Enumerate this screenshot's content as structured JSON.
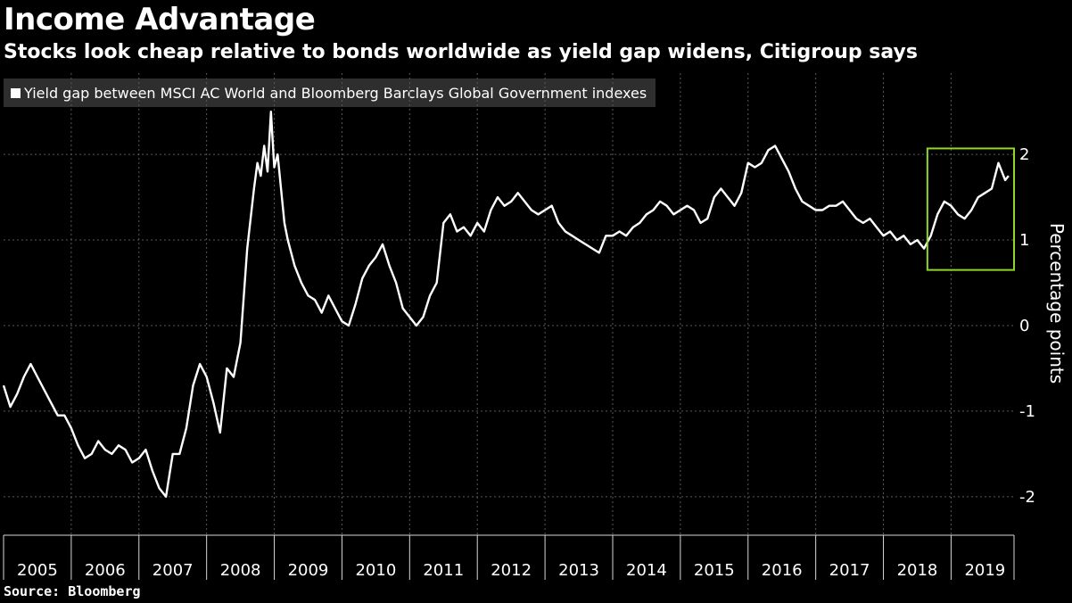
{
  "header": {
    "title": "Income Advantage",
    "subtitle": "Stocks look cheap relative to bonds worldwide as yield gap widens, Citigroup says"
  },
  "legend": {
    "label": "Yield gap between MSCI AC World and Bloomberg Barclays Global Government indexes"
  },
  "footer": {
    "source": "Source: Bloomberg"
  },
  "colors": {
    "background": "#000000",
    "line": "#ffffff",
    "grid": "#5a5a5a",
    "highlight": "#8ed62a"
  },
  "chart_data": {
    "type": "line",
    "title": "Income Advantage",
    "xlabel": "",
    "ylabel": "Percentage points",
    "xlim": [
      2005.0,
      2019.93
    ],
    "ylim": [
      -2.45,
      2.95
    ],
    "yticks": [
      -2,
      -1,
      0,
      1,
      2
    ],
    "xticks": [
      "2005",
      "2006",
      "2007",
      "2008",
      "2009",
      "2010",
      "2011",
      "2012",
      "2013",
      "2014",
      "2015",
      "2016",
      "2017",
      "2018",
      "2019"
    ],
    "series": [
      {
        "name": "Yield gap between MSCI AC World and Bloomberg Barclays Global Government indexes",
        "x": [
          2005.0,
          2005.1,
          2005.2,
          2005.3,
          2005.4,
          2005.5,
          2005.6,
          2005.7,
          2005.8,
          2005.9,
          2006.0,
          2006.1,
          2006.2,
          2006.3,
          2006.4,
          2006.5,
          2006.6,
          2006.7,
          2006.8,
          2006.9,
          2007.0,
          2007.1,
          2007.2,
          2007.3,
          2007.4,
          2007.5,
          2007.6,
          2007.7,
          2007.8,
          2007.9,
          2008.0,
          2008.1,
          2008.2,
          2008.3,
          2008.4,
          2008.5,
          2008.6,
          2008.7,
          2008.75,
          2008.8,
          2008.85,
          2008.9,
          2008.95,
          2009.0,
          2009.05,
          2009.1,
          2009.15,
          2009.2,
          2009.3,
          2009.4,
          2009.5,
          2009.6,
          2009.7,
          2009.8,
          2009.9,
          2010.0,
          2010.1,
          2010.2,
          2010.3,
          2010.4,
          2010.5,
          2010.6,
          2010.7,
          2010.8,
          2010.9,
          2011.0,
          2011.1,
          2011.2,
          2011.3,
          2011.4,
          2011.5,
          2011.6,
          2011.7,
          2011.8,
          2011.9,
          2012.0,
          2012.1,
          2012.2,
          2012.3,
          2012.4,
          2012.5,
          2012.6,
          2012.7,
          2012.8,
          2012.9,
          2013.0,
          2013.1,
          2013.2,
          2013.3,
          2013.4,
          2013.5,
          2013.6,
          2013.7,
          2013.8,
          2013.9,
          2014.0,
          2014.1,
          2014.2,
          2014.3,
          2014.4,
          2014.5,
          2014.6,
          2014.7,
          2014.8,
          2014.9,
          2015.0,
          2015.1,
          2015.2,
          2015.3,
          2015.4,
          2015.5,
          2015.6,
          2015.7,
          2015.8,
          2015.9,
          2016.0,
          2016.1,
          2016.2,
          2016.3,
          2016.4,
          2016.5,
          2016.6,
          2016.7,
          2016.8,
          2016.9,
          2017.0,
          2017.1,
          2017.2,
          2017.3,
          2017.4,
          2017.5,
          2017.6,
          2017.7,
          2017.8,
          2017.9,
          2018.0,
          2018.1,
          2018.2,
          2018.3,
          2018.4,
          2018.5,
          2018.6,
          2018.7,
          2018.8,
          2018.9,
          2019.0,
          2019.1,
          2019.2,
          2019.3,
          2019.4,
          2019.5,
          2019.6,
          2019.7,
          2019.8,
          2019.85
        ],
        "values": [
          -0.7,
          -0.95,
          -0.8,
          -0.6,
          -0.45,
          -0.6,
          -0.75,
          -0.9,
          -1.05,
          -1.05,
          -1.2,
          -1.4,
          -1.55,
          -1.5,
          -1.35,
          -1.45,
          -1.5,
          -1.4,
          -1.45,
          -1.6,
          -1.55,
          -1.45,
          -1.7,
          -1.9,
          -2.0,
          -1.5,
          -1.5,
          -1.2,
          -0.7,
          -0.45,
          -0.6,
          -0.9,
          -1.25,
          -0.5,
          -0.6,
          -0.2,
          0.9,
          1.6,
          1.9,
          1.75,
          2.1,
          1.8,
          2.5,
          1.85,
          2.0,
          1.6,
          1.2,
          1.0,
          0.7,
          0.5,
          0.35,
          0.3,
          0.15,
          0.35,
          0.2,
          0.05,
          0.0,
          0.25,
          0.55,
          0.7,
          0.8,
          0.95,
          0.7,
          0.5,
          0.2,
          0.1,
          0.0,
          0.1,
          0.35,
          0.5,
          1.2,
          1.3,
          1.1,
          1.15,
          1.05,
          1.2,
          1.1,
          1.35,
          1.5,
          1.4,
          1.45,
          1.55,
          1.45,
          1.35,
          1.3,
          1.35,
          1.4,
          1.2,
          1.1,
          1.05,
          1.0,
          0.95,
          0.9,
          0.85,
          1.05,
          1.05,
          1.1,
          1.05,
          1.15,
          1.2,
          1.3,
          1.35,
          1.45,
          1.4,
          1.3,
          1.35,
          1.4,
          1.35,
          1.2,
          1.25,
          1.5,
          1.6,
          1.5,
          1.4,
          1.55,
          1.9,
          1.85,
          1.9,
          2.05,
          2.1,
          1.95,
          1.8,
          1.6,
          1.45,
          1.4,
          1.35,
          1.35,
          1.4,
          1.4,
          1.45,
          1.35,
          1.25,
          1.2,
          1.25,
          1.15,
          1.05,
          1.1,
          1.0,
          1.05,
          0.95,
          1.0,
          0.9,
          1.05,
          1.3,
          1.45,
          1.4,
          1.3,
          1.25,
          1.35,
          1.5,
          1.55,
          1.6,
          1.9,
          1.7,
          1.75
        ]
      }
    ],
    "highlight": {
      "label": "",
      "x_range": [
        2018.65,
        2019.93
      ],
      "y_range": [
        0.65,
        2.07
      ]
    }
  }
}
